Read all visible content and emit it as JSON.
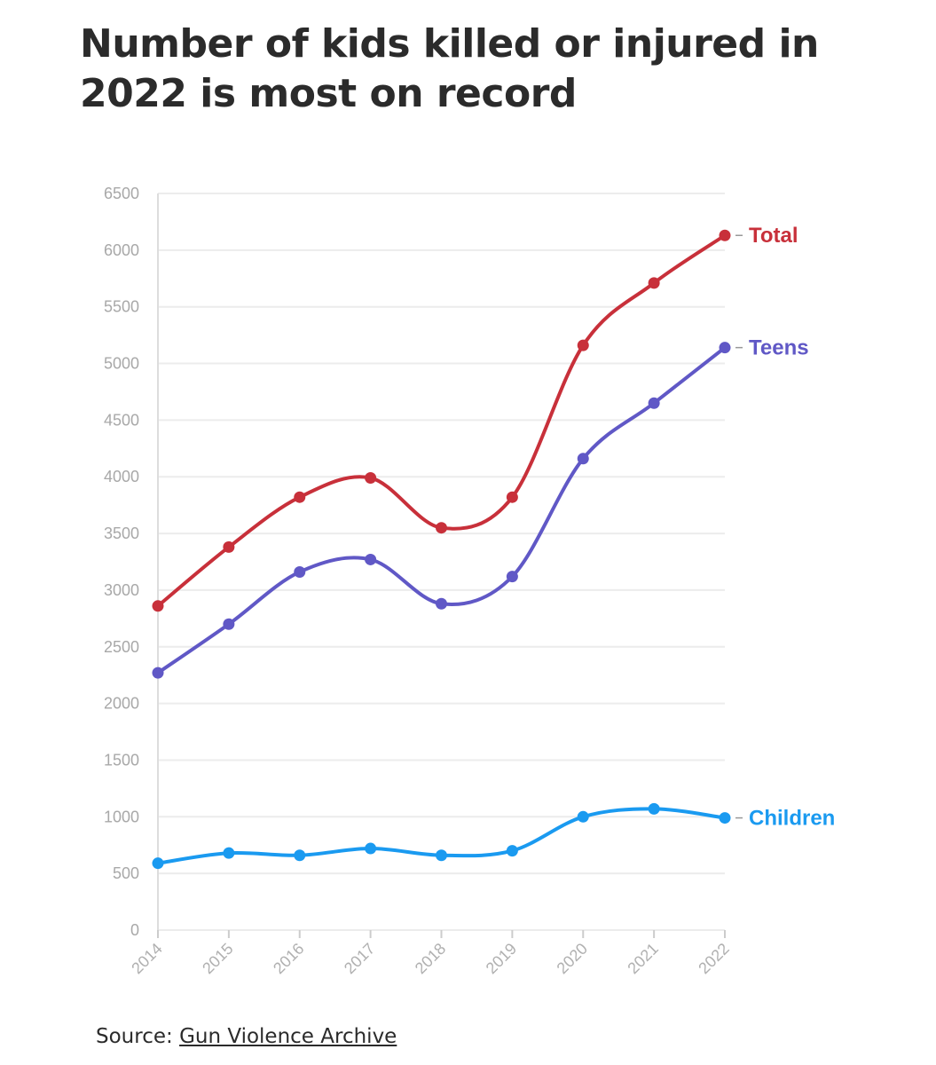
{
  "chart_data": {
    "type": "line",
    "title": "Number of kids killed or injured in 2022 is most on record",
    "x": [
      "2014",
      "2015",
      "2016",
      "2017",
      "2018",
      "2019",
      "2020",
      "2021",
      "2022"
    ],
    "ylim": [
      0,
      6500
    ],
    "yticks": [
      0,
      500,
      1000,
      1500,
      2000,
      2500,
      3000,
      3500,
      4000,
      4500,
      5000,
      5500,
      6000,
      6500
    ],
    "grid": true,
    "legend": "inline-right",
    "series": [
      {
        "name": "Total",
        "color": "#c8303a",
        "values": [
          2860,
          3380,
          3820,
          3990,
          3550,
          3820,
          5160,
          5710,
          6130
        ]
      },
      {
        "name": "Teens",
        "color": "#6058c6",
        "values": [
          2270,
          2700,
          3160,
          3270,
          2880,
          3120,
          4160,
          4650,
          5140
        ]
      },
      {
        "name": "Children",
        "color": "#1a9af0",
        "values": [
          590,
          680,
          660,
          720,
          660,
          700,
          1000,
          1070,
          990
        ]
      }
    ]
  },
  "source": {
    "prefix": "Source: ",
    "link_text": "Gun Violence Archive"
  }
}
